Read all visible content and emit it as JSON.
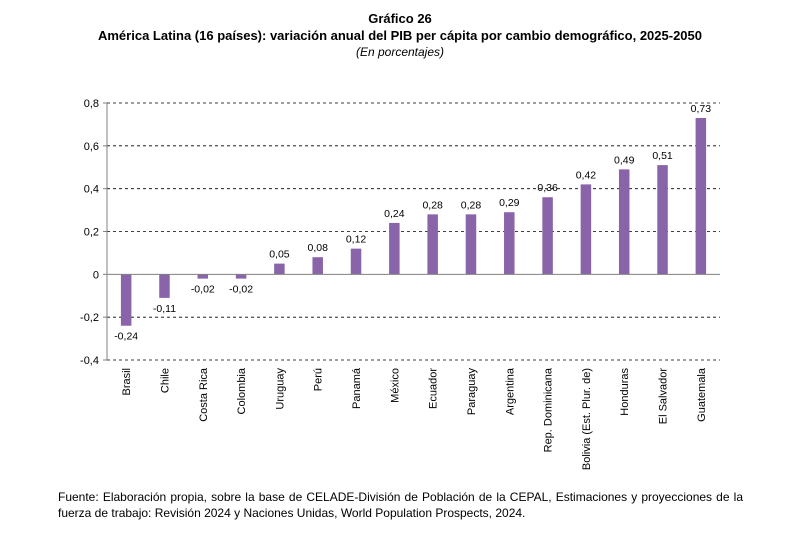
{
  "header": {
    "title": "Gráfico 26",
    "subtitle": "América Latina (16 países): variación anual del PIB per cápita por cambio demográfico, 2025-2050",
    "units": "(En porcentajes)"
  },
  "source": "Fuente: Elaboración propia, sobre la base de CELADE-División de Población de la CEPAL, Estimaciones y proyecciones de la fuerza de trabajo: Revisión 2024 y Naciones Unidas, World Population Prospects, 2024.",
  "colors": {
    "bar": "#8a64a8",
    "grid": "#000000",
    "axis": "#808080"
  },
  "chart_data": {
    "type": "bar",
    "title": "Gráfico 26",
    "subtitle": "América Latina (16 países): variación anual del PIB per cápita por cambio demográfico, 2025-2050",
    "ylabel": "",
    "xlabel": "",
    "ylim": [
      -0.4,
      0.8
    ],
    "yticks": [
      -0.4,
      -0.2,
      0,
      0.2,
      0.4,
      0.6,
      0.8
    ],
    "ytick_labels": [
      "-0,4",
      "-0,2",
      "0",
      "0,2",
      "0,4",
      "0,6",
      "0,8"
    ],
    "grid": "horizontal dashed",
    "categories": [
      "Brasil",
      "Chile",
      "Costa Rica",
      "Colombia",
      "Uruguay",
      "Perú",
      "Panamá",
      "México",
      "Ecuador",
      "Paraguay",
      "Argentina",
      "Rep. Dominicana",
      "Bolivia (Est. Plur. de)",
      "Honduras",
      "El Salvador",
      "Guatemala"
    ],
    "values": [
      -0.24,
      -0.11,
      -0.02,
      -0.02,
      0.05,
      0.08,
      0.12,
      0.24,
      0.28,
      0.28,
      0.29,
      0.36,
      0.42,
      0.49,
      0.51,
      0.73
    ],
    "value_labels": [
      "-0,24",
      "-0,11",
      "-0,02",
      "-0,02",
      "0,05",
      "0,08",
      "0,12",
      "0,24",
      "0,28",
      "0,28",
      "0,29",
      "0,36",
      "0,42",
      "0,49",
      "0,51",
      "0,73"
    ]
  }
}
